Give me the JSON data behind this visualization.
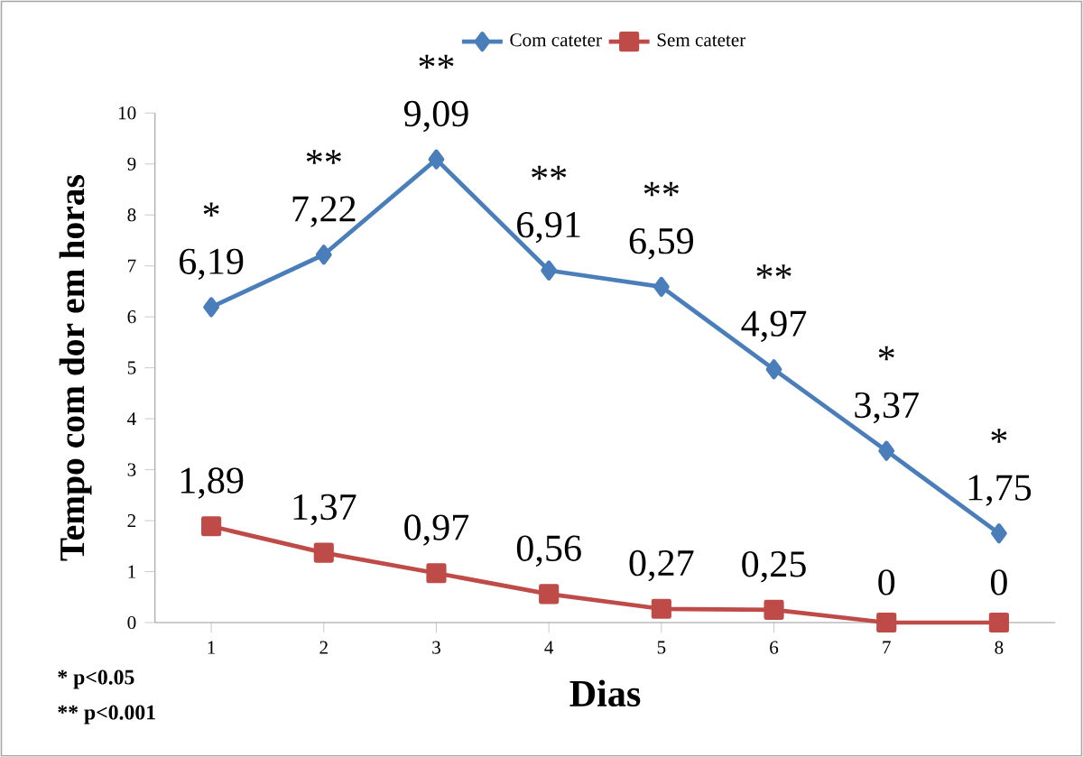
{
  "chart_data": {
    "type": "line",
    "xlabel": "Dias",
    "ylabel": "Tempo com dor em horas",
    "categories": [
      "1",
      "2",
      "3",
      "4",
      "5",
      "6",
      "7",
      "8"
    ],
    "series": [
      {
        "name": "Com cateter",
        "color": "#4a7ebb",
        "marker": "diamond",
        "values": [
          6.19,
          7.22,
          9.09,
          6.91,
          6.59,
          4.97,
          3.37,
          1.75
        ],
        "value_labels": [
          "6,19",
          "7,22",
          "9,09",
          "6,91",
          "6,59",
          "4,97",
          "3,37",
          "1,75"
        ]
      },
      {
        "name": "Sem cateter",
        "color": "#be4b48",
        "marker": "square",
        "values": [
          1.89,
          1.37,
          0.97,
          0.56,
          0.27,
          0.25,
          0,
          0
        ],
        "value_labels": [
          "1,89",
          "1,37",
          "0,97",
          "0,56",
          "0,27",
          "0,25",
          "0",
          "0"
        ]
      }
    ],
    "ylim": [
      0,
      10
    ],
    "yticks": [
      0,
      1,
      2,
      3,
      4,
      5,
      6,
      7,
      8,
      9,
      10
    ],
    "legend": "top",
    "grid": false,
    "annotations": [
      {
        "text": "*",
        "x": "1",
        "y": 6.19
      },
      {
        "text": "**",
        "x": "2",
        "y": 7.22
      },
      {
        "text": "**",
        "x": "3",
        "y": 9.09
      },
      {
        "text": "**",
        "x": "4",
        "y": 6.91
      },
      {
        "text": "**",
        "x": "5",
        "y": 6.59
      },
      {
        "text": "**",
        "x": "6",
        "y": 4.97
      },
      {
        "text": "*",
        "x": "7",
        "y": 3.37
      },
      {
        "text": "*",
        "x": "8",
        "y": 1.75
      },
      "* p<0.05",
      "** p<0.001"
    ]
  }
}
